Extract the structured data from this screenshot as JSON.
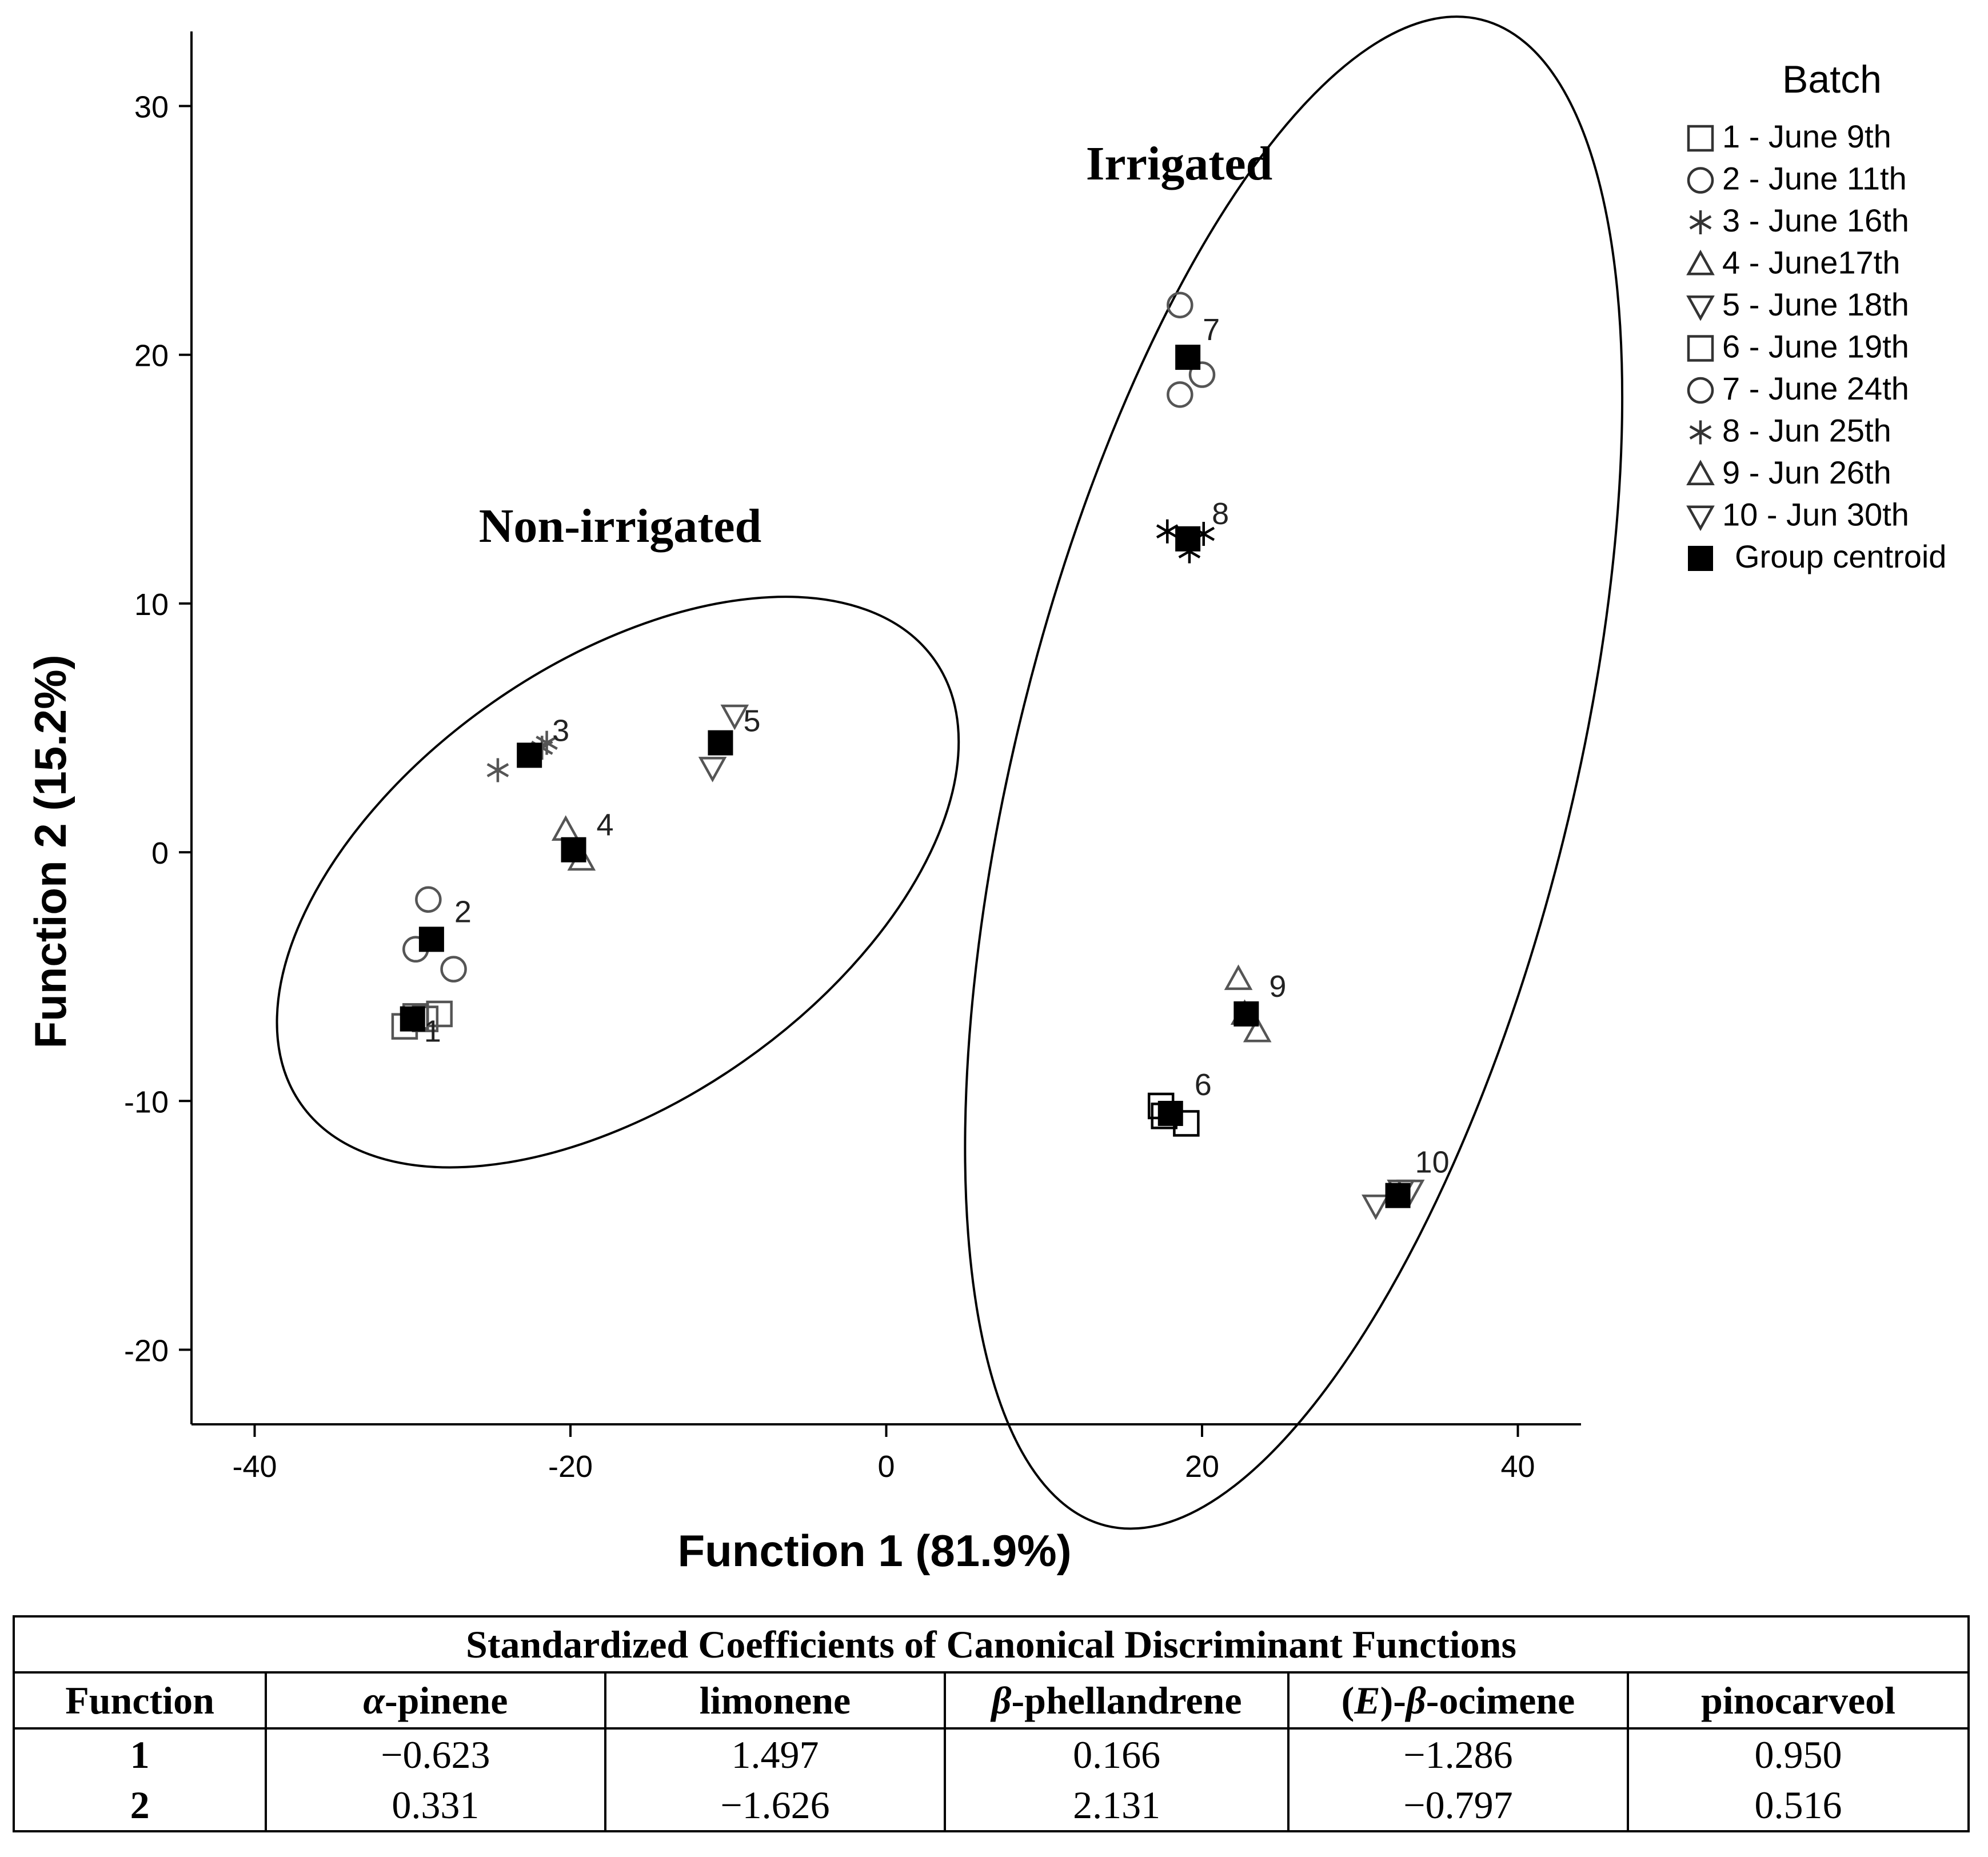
{
  "chart_data": {
    "type": "scatter",
    "xlabel": "Function 1 (81.9%)",
    "ylabel": "Function 2 (15.2%)",
    "xlim": [
      -44,
      44
    ],
    "ylim": [
      -23,
      33
    ],
    "xticks": [
      -40,
      -20,
      0,
      20,
      40
    ],
    "yticks": [
      -20,
      -10,
      0,
      10,
      20,
      30
    ],
    "xtick_labels": [
      "-40",
      "-20",
      "0",
      "20",
      "40"
    ],
    "ytick_labels": [
      "-20",
      "-10",
      "0",
      "10",
      "20",
      "30"
    ],
    "legend_title": "Batch",
    "legend_position": "top-right",
    "legend": [
      {
        "label": "1 - June 9th",
        "marker": "square-open-thin"
      },
      {
        "label": "2 - June 11th",
        "marker": "circle-open"
      },
      {
        "label": "3 - June 16th",
        "marker": "star"
      },
      {
        "label": "4 - June17th",
        "marker": "triangle-up"
      },
      {
        "label": "5 - June 18th",
        "marker": "triangle-down"
      },
      {
        "label": "6 - June 19th",
        "marker": "square-open"
      },
      {
        "label": "7 - June 24th",
        "marker": "circle-open"
      },
      {
        "label": "8 - Jun 25th",
        "marker": "star"
      },
      {
        "label": "9 - Jun 26th",
        "marker": "triangle-up"
      },
      {
        "label": "10 - Jun 30th",
        "marker": "triangle-down"
      },
      {
        "label": "Group centroid",
        "marker": "square-filled"
      }
    ],
    "groups": [
      {
        "label": "Non-irrigated",
        "ellipse": {
          "cx": -17,
          "cy": -1.2,
          "rx": 24.5,
          "ry": 8.8,
          "angle": 35
        }
      },
      {
        "label": "Irrigated",
        "ellipse": {
          "cx": 25.8,
          "cy": 3.2,
          "rx": 17.6,
          "ry": 31.2,
          "angle": -14
        }
      }
    ],
    "series": [
      {
        "name": "1 - June 9th",
        "marker": "square-open-thin",
        "color": "#555555",
        "label": "1",
        "points": [
          [
            -30.5,
            -7
          ],
          [
            -29.8,
            -6.6
          ],
          [
            -29.2,
            -6.7
          ],
          [
            -28.3,
            -6.5
          ]
        ],
        "centroid": [
          -30,
          -6.7
        ]
      },
      {
        "name": "2 - June 11th",
        "marker": "circle-open",
        "color": "#555555",
        "label": "2",
        "points": [
          [
            -29,
            -1.9
          ],
          [
            -29.8,
            -3.9
          ],
          [
            -27.4,
            -4.7
          ]
        ],
        "centroid": [
          -28.8,
          -3.5
        ]
      },
      {
        "name": "3 - June 16th",
        "marker": "star",
        "color": "#555555",
        "label": "3",
        "points": [
          [
            -24.6,
            3.3
          ],
          [
            -21.8,
            4.2
          ],
          [
            -21.5,
            4.4
          ]
        ],
        "centroid": [
          -22.6,
          3.9
        ]
      },
      {
        "name": "4 - June17th",
        "marker": "triangle-up",
        "color": "#555555",
        "label": "4",
        "points": [
          [
            -20.3,
            0.9
          ],
          [
            -19.3,
            -0.3
          ]
        ],
        "centroid": [
          -19.8,
          0.1
        ]
      },
      {
        "name": "5 - June 18th",
        "marker": "triangle-down",
        "color": "#555555",
        "label": "5",
        "points": [
          [
            -11,
            3.4
          ],
          [
            -9.6,
            5.5
          ]
        ],
        "centroid": [
          -10.5,
          4.4
        ]
      },
      {
        "name": "6 - June 19th",
        "marker": "square-open",
        "color": "#000000",
        "label": "6",
        "points": [
          [
            17.4,
            -10.2
          ],
          [
            17.6,
            -10.6
          ],
          [
            19,
            -10.9
          ]
        ],
        "centroid": [
          18,
          -10.5
        ]
      },
      {
        "name": "7 - June 24th",
        "marker": "circle-open",
        "color": "#555555",
        "label": "7",
        "points": [
          [
            18.6,
            22
          ],
          [
            18.6,
            18.4
          ],
          [
            20,
            19.2
          ]
        ],
        "centroid": [
          19.1,
          19.9
        ]
      },
      {
        "name": "8 - Jun 25th",
        "marker": "star",
        "color": "#000000",
        "label": "8",
        "points": [
          [
            17.8,
            12.9
          ],
          [
            19.2,
            12.1
          ],
          [
            20.1,
            12.8
          ]
        ],
        "centroid": [
          19.1,
          12.6
        ]
      },
      {
        "name": "9 - Jun 26th",
        "marker": "triangle-up",
        "color": "#555555",
        "label": "9",
        "points": [
          [
            22.3,
            -5.1
          ],
          [
            22.7,
            -6.5
          ],
          [
            23.5,
            -7.2
          ]
        ],
        "centroid": [
          22.8,
          -6.5
        ]
      },
      {
        "name": "10 - Jun 30th",
        "marker": "triangle-down",
        "color": "#555555",
        "label": "10",
        "points": [
          [
            31,
            -14.2
          ],
          [
            32.6,
            -13.6
          ],
          [
            33.2,
            -13.6
          ]
        ],
        "centroid": [
          32.4,
          -13.8
        ]
      }
    ]
  },
  "table": {
    "caption": "Standardized Coefficients of Canonical Discriminant Functions",
    "headers": [
      "Function",
      "α-pinene",
      "limonene",
      "β-phellandrene",
      "(E)-β-ocimene",
      "pinocarveol"
    ],
    "rows": [
      [
        "1",
        "−0.623",
        "1.497",
        "0.166",
        "−1.286",
        "0.950"
      ],
      [
        "2",
        "0.331",
        "−1.626",
        "2.131",
        "−0.797",
        "0.516"
      ]
    ]
  }
}
